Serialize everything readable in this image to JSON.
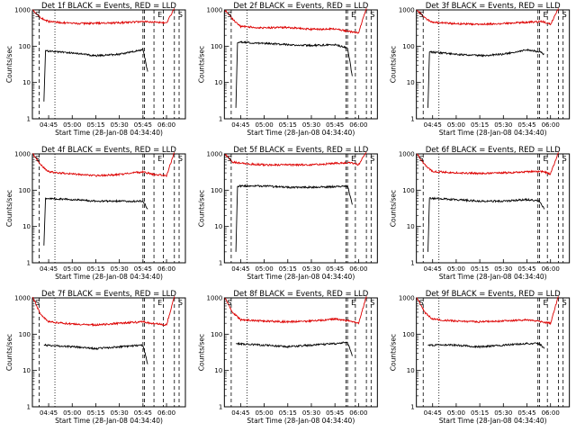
{
  "figure": {
    "start_time_label": "Start Time (28-Jan-08 04:34:40)",
    "y_axis_label": "Counts/sec",
    "series_colors": {
      "events": "#000000",
      "lld": "#dd0000"
    }
  },
  "chart_data": [
    {
      "type": "line",
      "title": "Det 1f BLACK = Events, RED = LLD",
      "xlabel": "Start Time (28-Jan-08 04:34:40)",
      "ylabel": "Counts/sec",
      "y_scale": "log",
      "ylim": [
        1,
        1000
      ],
      "xlim": [
        "04:34:40",
        "06:12:00"
      ],
      "x_ticks": [
        "04:45",
        "05:00",
        "05:15",
        "05:30",
        "05:45",
        "06:00"
      ],
      "y_ticks": [
        "1",
        "10",
        "100",
        "1000"
      ],
      "segment_labels": [
        "S",
        "E",
        "S"
      ],
      "marker_lines": [
        "04:39",
        "04:49",
        "05:45",
        "05:46",
        "05:52",
        "05:58",
        "06:05",
        "06:08"
      ],
      "series": [
        {
          "name": "Events",
          "color": "#000000",
          "segments": [
            {
              "x": [
                "04:42",
                "04:43",
                "05:00",
                "05:15",
                "05:30",
                "05:45",
                "05:48"
              ],
              "y": [
                3,
                75,
                65,
                55,
                60,
                80,
                20
              ]
            }
          ]
        },
        {
          "name": "LLD",
          "color": "#dd0000",
          "segments": [
            {
              "x": [
                "04:35",
                "04:40",
                "04:45",
                "05:00",
                "05:15",
                "05:30",
                "05:45",
                "05:50",
                "06:00",
                "06:05"
              ],
              "y": [
                1000,
                600,
                480,
                420,
                430,
                440,
                480,
                470,
                440,
                1100
              ]
            }
          ]
        }
      ]
    },
    {
      "type": "line",
      "title": "Det 2f BLACK = Events, RED = LLD",
      "xlabel": "Start Time (28-Jan-08 04:34:40)",
      "ylabel": "Counts/sec",
      "y_scale": "log",
      "ylim": [
        1,
        1000
      ],
      "xlim": [
        "04:34:40",
        "06:12:00"
      ],
      "x_ticks": [
        "04:45",
        "05:00",
        "05:15",
        "05:30",
        "05:45",
        "06:00"
      ],
      "y_ticks": [
        "1",
        "10",
        "100",
        "1000"
      ],
      "segment_labels": [
        "S",
        "E",
        "S"
      ],
      "marker_lines": [
        "04:39",
        "04:49",
        "05:52",
        "05:53",
        "05:58",
        "06:05",
        "06:08"
      ],
      "series": [
        {
          "name": "Events",
          "color": "#000000",
          "segments": [
            {
              "x": [
                "04:42",
                "04:43",
                "05:00",
                "05:15",
                "05:30",
                "05:45",
                "05:53",
                "05:56"
              ],
              "y": [
                2,
                130,
                120,
                110,
                105,
                110,
                90,
                15
              ]
            }
          ]
        },
        {
          "name": "LLD",
          "color": "#dd0000",
          "segments": [
            {
              "x": [
                "04:35",
                "04:40",
                "04:45",
                "05:00",
                "05:15",
                "05:30",
                "05:45",
                "05:55",
                "06:00",
                "06:05"
              ],
              "y": [
                1000,
                550,
                350,
                320,
                330,
                290,
                300,
                250,
                230,
                1100
              ]
            }
          ]
        }
      ]
    },
    {
      "type": "line",
      "title": "Det 3f BLACK = Events, RED = LLD",
      "xlabel": "Start Time (28-Jan-08 04:34:40)",
      "ylabel": "Counts/sec",
      "y_scale": "log",
      "ylim": [
        1,
        1000
      ],
      "xlim": [
        "04:34:40",
        "06:12:00"
      ],
      "x_ticks": [
        "04:45",
        "05:00",
        "05:15",
        "05:30",
        "05:45",
        "06:00"
      ],
      "y_ticks": [
        "1",
        "10",
        "100",
        "1000"
      ],
      "segment_labels": [
        "S",
        "E",
        "S"
      ],
      "marker_lines": [
        "04:39",
        "04:49",
        "05:52",
        "05:53",
        "05:58",
        "06:05",
        "06:08"
      ],
      "series": [
        {
          "name": "Events",
          "color": "#000000",
          "segments": [
            {
              "x": [
                "04:42",
                "04:43",
                "05:00",
                "05:15",
                "05:30",
                "05:45",
                "05:53",
                "05:56"
              ],
              "y": [
                2,
                70,
                60,
                55,
                60,
                80,
                70,
                60
              ]
            }
          ]
        },
        {
          "name": "LLD",
          "color": "#dd0000",
          "segments": [
            {
              "x": [
                "04:35",
                "04:40",
                "04:45",
                "05:00",
                "05:15",
                "05:30",
                "05:45",
                "05:55",
                "06:00",
                "06:05"
              ],
              "y": [
                1000,
                600,
                450,
                420,
                400,
                420,
                460,
                480,
                400,
                1100
              ]
            }
          ]
        }
      ]
    },
    {
      "type": "line",
      "title": "Det 4f BLACK = Events, RED = LLD",
      "xlabel": "Start Time (28-Jan-08 04:34:40)",
      "ylabel": "Counts/sec",
      "y_scale": "log",
      "ylim": [
        1,
        1000
      ],
      "xlim": [
        "04:34:40",
        "06:12:00"
      ],
      "x_ticks": [
        "04:45",
        "05:00",
        "05:15",
        "05:30",
        "05:45",
        "06:00"
      ],
      "y_ticks": [
        "1",
        "10",
        "100",
        "1000"
      ],
      "segment_labels": [
        "S",
        "E",
        "S"
      ],
      "marker_lines": [
        "04:39",
        "04:49",
        "05:45",
        "05:46",
        "05:52",
        "05:58",
        "06:05",
        "06:08"
      ],
      "series": [
        {
          "name": "Events",
          "color": "#000000",
          "segments": [
            {
              "x": [
                "04:42",
                "04:43",
                "05:00",
                "05:15",
                "05:30",
                "05:45",
                "05:48"
              ],
              "y": [
                3,
                60,
                55,
                50,
                50,
                50,
                30
              ]
            }
          ]
        },
        {
          "name": "LLD",
          "color": "#dd0000",
          "segments": [
            {
              "x": [
                "04:35",
                "04:40",
                "04:45",
                "05:00",
                "05:15",
                "05:30",
                "05:45",
                "05:50",
                "06:00",
                "06:05"
              ],
              "y": [
                1000,
                500,
                320,
                280,
                250,
                270,
                320,
                280,
                250,
                1100
              ]
            }
          ]
        }
      ]
    },
    {
      "type": "line",
      "title": "Det 5f BLACK = Events, RED = LLD",
      "xlabel": "Start Time (28-Jan-08 04:34:40)",
      "ylabel": "Counts/sec",
      "y_scale": "log",
      "ylim": [
        1,
        1000
      ],
      "xlim": [
        "04:34:40",
        "06:12:00"
      ],
      "x_ticks": [
        "04:45",
        "05:00",
        "05:15",
        "05:30",
        "05:45",
        "06:00"
      ],
      "y_ticks": [
        "1",
        "10",
        "100",
        "1000"
      ],
      "segment_labels": [
        "S",
        "E",
        "S"
      ],
      "marker_lines": [
        "04:39",
        "04:49",
        "05:52",
        "05:53",
        "05:58",
        "06:05",
        "06:08"
      ],
      "series": [
        {
          "name": "Events",
          "color": "#000000",
          "segments": [
            {
              "x": [
                "04:42",
                "04:43",
                "05:00",
                "05:15",
                "05:30",
                "05:45",
                "05:53",
                "05:56"
              ],
              "y": [
                2,
                130,
                130,
                120,
                120,
                125,
                130,
                40
              ]
            }
          ]
        },
        {
          "name": "LLD",
          "color": "#dd0000",
          "segments": [
            {
              "x": [
                "04:35",
                "04:40",
                "04:45",
                "05:00",
                "05:15",
                "05:30",
                "05:45",
                "05:55",
                "06:00",
                "06:05"
              ],
              "y": [
                1000,
                600,
                550,
                500,
                500,
                500,
                550,
                580,
                500,
                1100
              ]
            }
          ]
        }
      ]
    },
    {
      "type": "line",
      "title": "Det 6f BLACK = Events, RED = LLD",
      "xlabel": "Start Time (28-Jan-08 04:34:40)",
      "ylabel": "Counts/sec",
      "y_scale": "log",
      "ylim": [
        1,
        1000
      ],
      "xlim": [
        "04:34:40",
        "06:12:00"
      ],
      "x_ticks": [
        "04:45",
        "05:00",
        "05:15",
        "05:30",
        "05:45",
        "06:00"
      ],
      "y_ticks": [
        "1",
        "10",
        "100",
        "1000"
      ],
      "segment_labels": [
        "S",
        "E",
        "S"
      ],
      "marker_lines": [
        "04:39",
        "04:49",
        "05:52",
        "05:53",
        "05:58",
        "06:05",
        "06:08"
      ],
      "series": [
        {
          "name": "Events",
          "color": "#000000",
          "segments": [
            {
              "x": [
                "04:42",
                "04:43",
                "05:00",
                "05:15",
                "05:30",
                "05:45",
                "05:53",
                "05:56"
              ],
              "y": [
                2,
                60,
                55,
                50,
                50,
                55,
                50,
                30
              ]
            }
          ]
        },
        {
          "name": "LLD",
          "color": "#dd0000",
          "segments": [
            {
              "x": [
                "04:35",
                "04:40",
                "04:45",
                "05:00",
                "05:15",
                "05:30",
                "05:45",
                "05:55",
                "06:00",
                "06:05"
              ],
              "y": [
                1000,
                500,
                330,
                300,
                290,
                300,
                320,
                330,
                280,
                1100
              ]
            }
          ]
        }
      ]
    },
    {
      "type": "line",
      "title": "Det 7f BLACK = Events, RED = LLD",
      "xlabel": "Start Time (28-Jan-08 04:34:40)",
      "ylabel": "Counts/sec",
      "y_scale": "log",
      "ylim": [
        1,
        1000
      ],
      "xlim": [
        "04:34:40",
        "06:12:00"
      ],
      "x_ticks": [
        "04:45",
        "05:00",
        "05:15",
        "05:30",
        "05:45",
        "06:00"
      ],
      "y_ticks": [
        "1",
        "10",
        "100",
        "1000"
      ],
      "segment_labels": [
        "S",
        "E",
        "S"
      ],
      "marker_lines": [
        "04:39",
        "04:49",
        "05:45",
        "05:46",
        "05:52",
        "05:58",
        "06:05",
        "06:08"
      ],
      "series": [
        {
          "name": "Events",
          "color": "#000000",
          "segments": [
            {
              "x": [
                "04:42",
                "04:43",
                "05:00",
                "05:15",
                "05:30",
                "05:45",
                "05:48"
              ],
              "y": [
                50,
                50,
                45,
                40,
                45,
                50,
                15
              ]
            }
          ]
        },
        {
          "name": "LLD",
          "color": "#dd0000",
          "segments": [
            {
              "x": [
                "04:35",
                "04:40",
                "04:45",
                "05:00",
                "05:15",
                "05:30",
                "05:45",
                "05:50",
                "06:00",
                "06:05"
              ],
              "y": [
                1000,
                350,
                220,
                190,
                180,
                200,
                220,
                200,
                180,
                1100
              ]
            }
          ]
        }
      ]
    },
    {
      "type": "line",
      "title": "Det 8f BLACK = Events, RED = LLD",
      "xlabel": "Start Time (28-Jan-08 04:34:40)",
      "ylabel": "Counts/sec",
      "y_scale": "log",
      "ylim": [
        1,
        1000
      ],
      "xlim": [
        "04:34:40",
        "06:12:00"
      ],
      "x_ticks": [
        "04:45",
        "05:00",
        "05:15",
        "05:30",
        "05:45",
        "06:00"
      ],
      "y_ticks": [
        "1",
        "10",
        "100",
        "1000"
      ],
      "segment_labels": [
        "S",
        "E",
        "S"
      ],
      "marker_lines": [
        "04:39",
        "04:49",
        "05:52",
        "05:53",
        "05:58",
        "06:05",
        "06:08"
      ],
      "series": [
        {
          "name": "Events",
          "color": "#000000",
          "segments": [
            {
              "x": [
                "04:42",
                "04:43",
                "05:00",
                "05:15",
                "05:30",
                "05:45",
                "05:53",
                "05:56"
              ],
              "y": [
                55,
                55,
                50,
                45,
                50,
                55,
                60,
                25
              ]
            }
          ]
        },
        {
          "name": "LLD",
          "color": "#dd0000",
          "segments": [
            {
              "x": [
                "04:35",
                "04:40",
                "04:45",
                "05:00",
                "05:15",
                "05:30",
                "05:45",
                "05:55",
                "06:00",
                "06:05"
              ],
              "y": [
                1000,
                400,
                250,
                230,
                220,
                230,
                260,
                230,
                200,
                1100
              ]
            }
          ]
        }
      ]
    },
    {
      "type": "line",
      "title": "Det 9f BLACK = Events, RED = LLD",
      "xlabel": "Start Time (28-Jan-08 04:34:40)",
      "ylabel": "Counts/sec",
      "y_scale": "log",
      "ylim": [
        1,
        1000
      ],
      "xlim": [
        "04:34:40",
        "06:12:00"
      ],
      "x_ticks": [
        "04:45",
        "05:00",
        "05:15",
        "05:30",
        "05:45",
        "06:00"
      ],
      "y_ticks": [
        "1",
        "10",
        "100",
        "1000"
      ],
      "segment_labels": [
        "S",
        "E",
        "S"
      ],
      "marker_lines": [
        "04:39",
        "04:49",
        "05:52",
        "05:53",
        "05:58",
        "06:05",
        "06:08"
      ],
      "series": [
        {
          "name": "Events",
          "color": "#000000",
          "segments": [
            {
              "x": [
                "04:42",
                "04:43",
                "05:00",
                "05:15",
                "05:30",
                "05:45",
                "05:53",
                "05:56"
              ],
              "y": [
                50,
                50,
                50,
                45,
                50,
                55,
                55,
                40
              ]
            }
          ]
        },
        {
          "name": "LLD",
          "color": "#dd0000",
          "segments": [
            {
              "x": [
                "04:35",
                "04:40",
                "04:45",
                "05:00",
                "05:15",
                "05:30",
                "05:45",
                "05:55",
                "06:00",
                "06:05"
              ],
              "y": [
                1000,
                400,
                260,
                230,
                220,
                230,
                250,
                220,
                200,
                1100
              ]
            }
          ]
        }
      ]
    }
  ]
}
